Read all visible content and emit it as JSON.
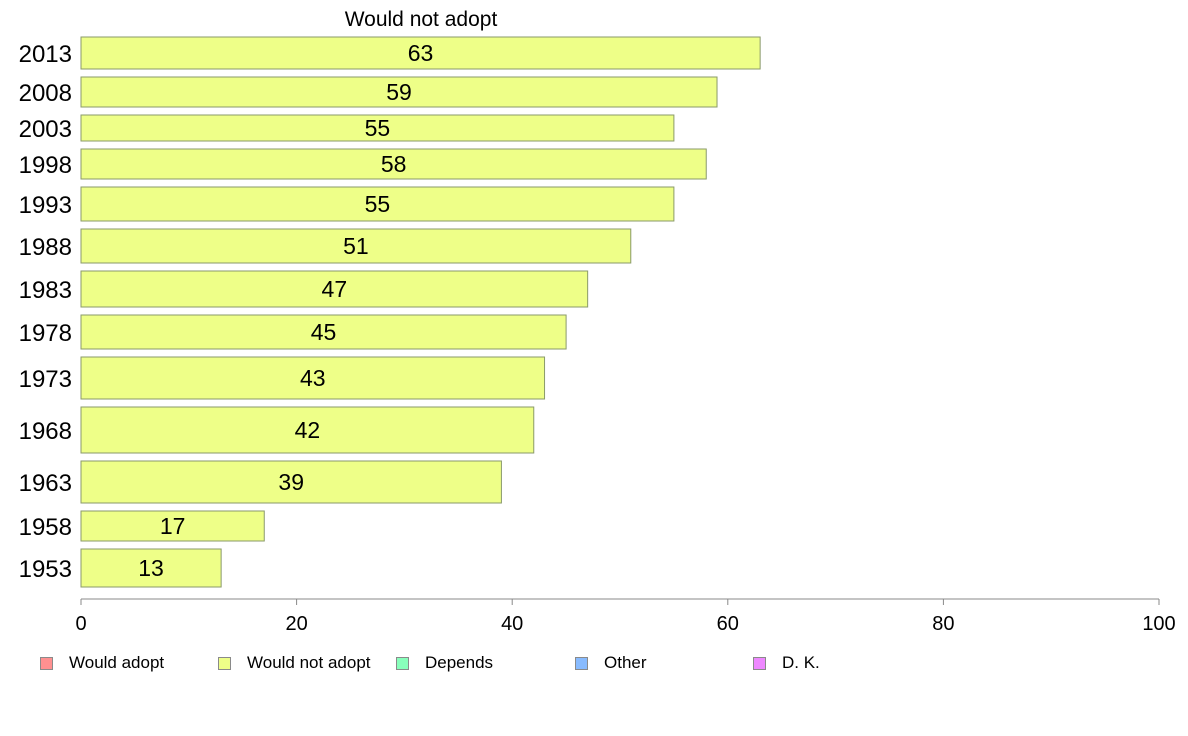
{
  "chart_data": {
    "type": "bar",
    "orientation": "horizontal",
    "title": "Would not adopt",
    "categories": [
      "2013",
      "2008",
      "2003",
      "1998",
      "1993",
      "1988",
      "1983",
      "1978",
      "1973",
      "1968",
      "1963",
      "1958",
      "1953"
    ],
    "values": [
      63,
      59,
      55,
      58,
      55,
      51,
      47,
      45,
      43,
      42,
      39,
      17,
      13
    ],
    "xlim": [
      0,
      100
    ],
    "xticks": [
      "0",
      "20",
      "40",
      "60",
      "80",
      "100"
    ],
    "bar_color": "#eeff88",
    "grid": false,
    "legend": {
      "placement": "bottom",
      "items": [
        {
          "label": "Would adopt",
          "color": "#ff9090"
        },
        {
          "label": "Would not adopt",
          "color": "#eeff88"
        },
        {
          "label": "Depends",
          "color": "#88ffbb"
        },
        {
          "label": "Other",
          "color": "#88bbff"
        },
        {
          "label": "D. K.",
          "color": "#ee88ff"
        }
      ]
    }
  }
}
